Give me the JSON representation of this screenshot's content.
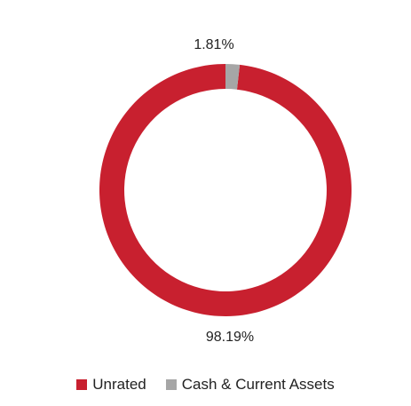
{
  "chart_data": {
    "type": "pie",
    "donut": true,
    "title": "",
    "categories": [
      "Unrated",
      "Cash & Current Assets"
    ],
    "values": [
      98.19,
      1.81
    ],
    "value_labels": [
      "98.19%",
      "1.81%"
    ],
    "colors": [
      "#c8202f",
      "#a6a6a6"
    ],
    "legend": "bottom-center",
    "legend_items": [
      {
        "label": "Unrated",
        "color": "#c8202f"
      },
      {
        "label": "Cash & Current Assets",
        "color": "#a6a6a6"
      }
    ]
  }
}
